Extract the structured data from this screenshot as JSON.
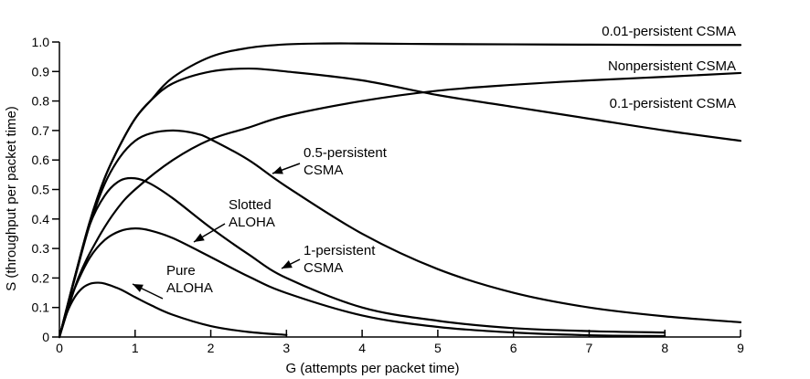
{
  "chart_data": {
    "type": "line",
    "title": "",
    "xlabel": "G (attempts per packet time)",
    "ylabel": "S (throughput per packet time)",
    "xlim": [
      0,
      9
    ],
    "ylim": [
      0,
      1.0
    ],
    "xticks": [
      "0",
      "1",
      "2",
      "3",
      "4",
      "5",
      "6",
      "7",
      "8",
      "9"
    ],
    "yticks": [
      "0",
      "0.1",
      "0.2",
      "0.3",
      "0.4",
      "0.5",
      "0.6",
      "0.7",
      "0.8",
      "0.9",
      "1.0"
    ],
    "grid": false,
    "series": [
      {
        "name": "Pure ALOHA",
        "label_lines": [
          "Pure",
          "ALOHA"
        ],
        "x": [
          0,
          0.1,
          0.2,
          0.3,
          0.4,
          0.5,
          0.6,
          0.8,
          1.0,
          1.2,
          1.5,
          2.0,
          2.5,
          3.0
        ],
        "y": [
          0,
          0.082,
          0.134,
          0.165,
          0.18,
          0.184,
          0.181,
          0.162,
          0.135,
          0.109,
          0.075,
          0.037,
          0.017,
          0.007
        ]
      },
      {
        "name": "Slotted ALOHA",
        "label_lines": [
          "Slotted",
          "ALOHA"
        ],
        "x": [
          0,
          0.1,
          0.2,
          0.4,
          0.6,
          0.8,
          1.0,
          1.2,
          1.5,
          2.0,
          2.5,
          3.0,
          4.0,
          5.0,
          6.0,
          7.0,
          8.0
        ],
        "y": [
          0,
          0.09,
          0.164,
          0.268,
          0.329,
          0.359,
          0.368,
          0.361,
          0.335,
          0.271,
          0.205,
          0.149,
          0.073,
          0.034,
          0.015,
          0.006,
          0.003
        ]
      },
      {
        "name": "1-persistent CSMA",
        "label_lines": [
          "1-persistent",
          "CSMA"
        ],
        "x": [
          0,
          0.1,
          0.2,
          0.4,
          0.6,
          0.8,
          1.0,
          1.2,
          1.5,
          2.0,
          2.5,
          3.0,
          4.0,
          5.0,
          6.0,
          7.0,
          8.0
        ],
        "y": [
          0,
          0.1,
          0.2,
          0.38,
          0.48,
          0.53,
          0.538,
          0.52,
          0.47,
          0.37,
          0.28,
          0.2,
          0.1,
          0.055,
          0.03,
          0.02,
          0.015
        ]
      },
      {
        "name": "0.5-persistent CSMA",
        "label_lines": [
          "0.5-persistent",
          "CSMA"
        ],
        "x": [
          0,
          0.2,
          0.4,
          0.6,
          0.8,
          1.0,
          1.2,
          1.5,
          1.8,
          2.0,
          2.5,
          3.0,
          4.0,
          5.0,
          6.0,
          7.0,
          8.0,
          9.0
        ],
        "y": [
          0,
          0.195,
          0.38,
          0.52,
          0.61,
          0.665,
          0.69,
          0.7,
          0.69,
          0.67,
          0.6,
          0.51,
          0.35,
          0.23,
          0.15,
          0.1,
          0.07,
          0.05
        ]
      },
      {
        "name": "Nonpersistent CSMA",
        "label_lines": [
          "Nonpersistent CSMA"
        ],
        "x": [
          0,
          0.25,
          0.5,
          0.75,
          1.0,
          1.5,
          2.0,
          2.5,
          3.0,
          4.0,
          5.0,
          6.0,
          7.0,
          8.0,
          9.0
        ],
        "y": [
          0,
          0.2,
          0.33,
          0.43,
          0.5,
          0.6,
          0.67,
          0.71,
          0.75,
          0.8,
          0.835,
          0.855,
          0.87,
          0.882,
          0.895
        ]
      },
      {
        "name": "0.1-persistent CSMA",
        "label_lines": [
          "0.1-persistent CSMA"
        ],
        "x": [
          0,
          0.2,
          0.4,
          0.6,
          0.8,
          1.0,
          1.2,
          1.5,
          2.0,
          2.5,
          3.0,
          4.0,
          5.0,
          6.0,
          7.0,
          8.0,
          9.0
        ],
        "y": [
          0,
          0.2,
          0.39,
          0.54,
          0.65,
          0.74,
          0.8,
          0.86,
          0.9,
          0.91,
          0.9,
          0.87,
          0.82,
          0.78,
          0.74,
          0.7,
          0.665
        ]
      },
      {
        "name": "0.01-persistent CSMA",
        "label_lines": [
          "0.01-persistent CSMA"
        ],
        "x": [
          0,
          0.2,
          0.4,
          0.6,
          0.8,
          1.0,
          1.2,
          1.5,
          2.0,
          2.5,
          3.0,
          3.5,
          4.0,
          5.0,
          6.0,
          7.0,
          8.0,
          9.0
        ],
        "y": [
          0,
          0.2,
          0.39,
          0.54,
          0.65,
          0.74,
          0.8,
          0.88,
          0.95,
          0.98,
          0.992,
          0.995,
          0.995,
          0.993,
          0.992,
          0.991,
          0.99,
          0.99
        ]
      }
    ]
  }
}
